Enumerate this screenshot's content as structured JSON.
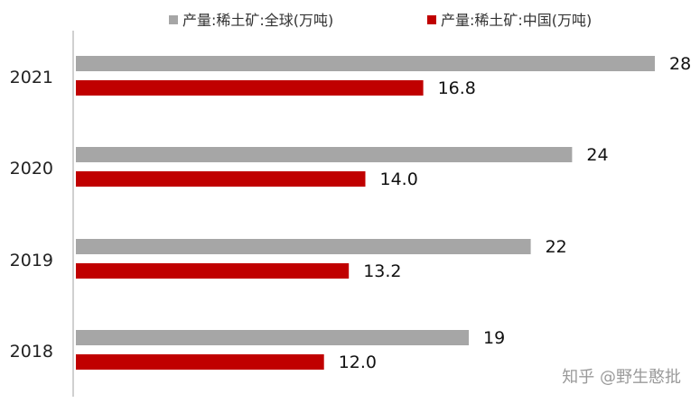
{
  "chart_data": {
    "type": "bar",
    "orientation": "horizontal",
    "categories": [
      "2021",
      "2020",
      "2019",
      "2018"
    ],
    "series": [
      {
        "name": "产量:稀土矿:全球(万吨)",
        "color": "#a6a6a6",
        "values": [
          28,
          24,
          22,
          19
        ],
        "labels": [
          "28",
          "24",
          "22",
          "19"
        ]
      },
      {
        "name": "产量:稀土矿:中国(万吨)",
        "color": "#c00000",
        "values": [
          16.8,
          14.0,
          13.2,
          12.0
        ],
        "labels": [
          "16.8",
          "14.0",
          "13.2",
          "12.0"
        ]
      }
    ],
    "xlim": [
      0,
      28
    ],
    "grid": false,
    "legend_position": "top"
  },
  "watermark": "知乎 @野生憨批"
}
